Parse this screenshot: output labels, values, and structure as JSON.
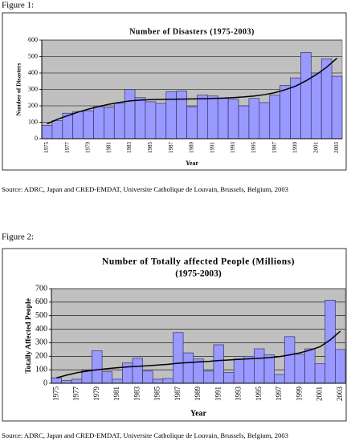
{
  "chart_data": [
    {
      "type": "bar",
      "figure_label": "Figure 1:",
      "title": "Number of Disasters (1975-2003)",
      "x_label": "Year",
      "y_label": "Number of Disasters",
      "source": "Source: ADRC, Japan and CRED-EMDAT, Universite Catholique de Louvain, Brussels, Belgium, 2003",
      "categories": [
        "1975",
        null,
        "1977",
        null,
        "1979",
        null,
        "1981",
        null,
        "1983",
        null,
        "1985",
        null,
        "1987",
        null,
        "1989",
        null,
        "1991",
        null,
        "1993",
        null,
        "1995",
        null,
        "1997",
        null,
        "1999",
        null,
        "2001",
        null,
        "2003"
      ],
      "values": [
        80,
        110,
        155,
        165,
        170,
        195,
        190,
        215,
        300,
        250,
        225,
        215,
        285,
        290,
        195,
        265,
        260,
        245,
        240,
        200,
        245,
        220,
        265,
        325,
        370,
        525,
        400,
        485,
        380
      ],
      "color": "#9999ff",
      "trend": {
        "color": "#000000",
        "values": [
          90,
          118,
          140,
          162,
          180,
          196,
          210,
          221,
          230,
          235,
          238,
          239,
          240,
          241,
          242,
          243,
          245,
          247,
          250,
          254,
          260,
          268,
          280,
          298,
          320,
          352,
          390,
          435,
          490
        ]
      },
      "ylim": [
        0,
        600
      ],
      "yticks": [
        0,
        100,
        200,
        300,
        400,
        500,
        600
      ],
      "grid": true,
      "background": "#c0c0c0"
    },
    {
      "type": "bar",
      "figure_label": "Figure 2:",
      "title": "Number of Totally affected People (Millions)",
      "subtitle": "(1975-2003)",
      "x_label": "Year",
      "y_label": "Totally Affected People",
      "source": "Source: ADRC, Japan and CRED-EMDAT, Universite Catholique de Louvain, Brussels, Belgium, 2003",
      "categories": [
        "1975",
        null,
        "1977",
        null,
        "1979",
        null,
        "1981",
        null,
        "1983",
        null,
        "1985",
        null,
        "1987",
        null,
        "1989",
        null,
        "1991",
        null,
        "1993",
        null,
        "1995",
        null,
        "1997",
        null,
        "1999",
        null,
        "2001",
        null,
        "2003"
      ],
      "values": [
        40,
        20,
        30,
        95,
        240,
        85,
        30,
        150,
        185,
        90,
        30,
        35,
        375,
        225,
        180,
        90,
        285,
        80,
        180,
        200,
        255,
        210,
        65,
        345,
        215,
        255,
        145,
        615,
        250
      ],
      "color": "#9999ff",
      "trend": {
        "color": "#000000",
        "values": [
          40,
          60,
          78,
          90,
          100,
          108,
          115,
          121,
          125,
          130,
          135,
          140,
          148,
          153,
          158,
          162,
          168,
          172,
          177,
          181,
          185,
          190,
          197,
          210,
          225,
          245,
          270,
          320,
          385
        ]
      },
      "ylim": [
        0,
        700
      ],
      "yticks": [
        0,
        100,
        200,
        300,
        400,
        500,
        600,
        700
      ],
      "grid": true,
      "background": "#c0c0c0"
    }
  ]
}
